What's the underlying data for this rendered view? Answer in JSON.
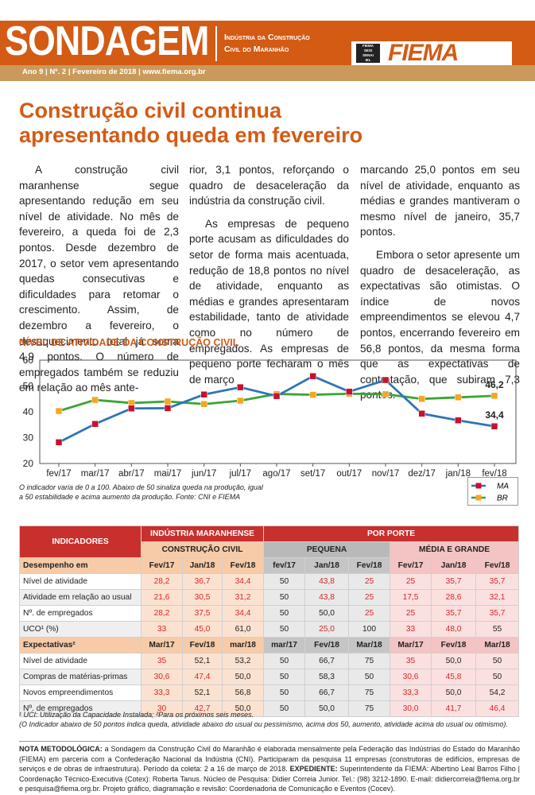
{
  "header": {
    "title": "SONDAGEM",
    "subtitle_line1": "Indústria da Construção",
    "subtitle_line2": "Civil do Maranhão",
    "logo_text": "FIEMA",
    "logo_mini": [
      "FIEMA",
      "SESI",
      "SENAI",
      "IEL"
    ],
    "issue": "Ano 9 | Nº. 2 | Fevereiro de 2018 | www.fiema.org.br"
  },
  "headline": {
    "line1": "Construção civil continua",
    "line2": "apresentando queda em fevereiro"
  },
  "article": {
    "col1_p1": "A construção civil maranhense segue apresentando redução em seu nível de atividade. No mês de fevereiro, a queda foi de 2,3 pontos. Desde dezembro de 2017, o setor vem apresentando quedas consecutivas e dificuldades para retomar o crescimento. Assim, de dezembro a fevereiro, o desaquecimento total já soma 4,9 pontos. O número de empregados também se reduziu em relação ao mês ante-",
    "col2_p1": "rior, 3,1 pontos, reforçando o quadro de desaceleração da indústria da construção civil.",
    "col2_p2": "As empresas de pequeno porte acusam as dificuldades do setor de forma mais acentuada, redução de 18,8 pontos no nível de atividade, enquanto as médias e grandes apresentaram estabilidade, tanto de atividade como no número de empregados. As empresas de pequeno porte fecharam o mês de março",
    "col3_p1": "marcando 25,0 pontos em seu nível de atividade, enquanto as médias e grandes mantiveram o mesmo nível de janeiro, 35,7 pontos.",
    "col3_p2": "Embora o setor apresente um quadro de desaceleração, as expectativas são otimistas. O índice de novos empreendimentos se elevou 4,7 pontos, encerrando fevereiro em 56,8 pontos, da mesma forma que as expectativas de contratação, que subiram 7,3 pontos."
  },
  "chart_data": {
    "type": "line",
    "title": "NÍVEL DE ATIVIDADE DA CONSTRUÇÃO CIVIL",
    "categories": [
      "fev/17",
      "mar/17",
      "abr/17",
      "mai/17",
      "jun/17",
      "jul/17",
      "ago/17",
      "set/17",
      "out/17",
      "nov/17",
      "dez/17",
      "jan/18",
      "fev/18"
    ],
    "series": [
      {
        "name": "MA",
        "color": "#2e75b6",
        "marker_color": "#c8102e",
        "values": [
          28.2,
          35.3,
          41.3,
          41.4,
          46.7,
          49.5,
          46.1,
          53.8,
          47.8,
          52.3,
          39.3,
          36.7,
          34.4
        ]
      },
      {
        "name": "BR",
        "color": "#3aa535",
        "marker_color": "#f5a623",
        "values": [
          40.3,
          44.6,
          43.4,
          44.0,
          43.0,
          44.3,
          46.9,
          46.6,
          47.0,
          46.8,
          45.0,
          45.6,
          46.2
        ]
      }
    ],
    "ylim": [
      20,
      60
    ],
    "yticks": [
      "60",
      "50",
      "40",
      "30",
      "20"
    ],
    "end_labels": {
      "MA": "34,4",
      "BR": "46,2"
    },
    "grid": false,
    "legend": "bottom-right",
    "note_line1": "O indicador varia de 0 a 100. Abaixo de 50 sinaliza queda na produção, igual",
    "note_line2": "a 50 estabilidade e acima aumento da produção. Fonte: CNI e FIEMA"
  },
  "table": {
    "head_indicadores": "INDICADORES",
    "head_ind_ma": "INDÚSTRIA MARANHENSE",
    "head_porte": "POR PORTE",
    "head_cc": "CONSTRUÇÃO CIVIL",
    "head_pequena": "PEQUENA",
    "head_mg": "MÉDIA E GRANDE",
    "sec1_label": "Desempenho em",
    "sec1_cols": [
      "Fev/17",
      "Jan/18",
      "Fev/18",
      "fev/17",
      "Jan/18",
      "Fev/18",
      "Fev/17",
      "Jan/18",
      "Fev/18"
    ],
    "sec1_rows": [
      {
        "label": "Nível de atividade",
        "v": [
          "28,2",
          "36,7",
          "34,4",
          "50",
          "43,8",
          "25",
          "25",
          "35,7",
          "35,7"
        ]
      },
      {
        "label": "Atividade em relação ao usual",
        "v": [
          "21,6",
          "30,5",
          "31,2",
          "50",
          "43,8",
          "25",
          "17,5",
          "28,6",
          "32,1"
        ]
      },
      {
        "label": "Nº. de empregados",
        "v": [
          "28,2",
          "37,5",
          "34,4",
          "50",
          "50,0",
          "25",
          "25",
          "35,7",
          "35,7"
        ]
      },
      {
        "label": "UCO¹ (%)",
        "v": [
          "33",
          "45,0",
          "61,0",
          "50",
          "25,0",
          "100",
          "33",
          "48,0",
          "55"
        ]
      }
    ],
    "sec2_label": "Expectativas²",
    "sec2_cols": [
      "Mar/17",
      "Fev/18",
      "mar/18",
      "mar/17",
      "Fev/18",
      "Mar/18",
      "Mar/17",
      "Fev/18",
      "Mar/18"
    ],
    "sec2_rows": [
      {
        "label": "Nível de atividade",
        "v": [
          "35",
          "52,1",
          "53,2",
          "50",
          "66,7",
          "75",
          "35",
          "50,0",
          "50"
        ]
      },
      {
        "label": "Compras de matérias-primas",
        "v": [
          "30,6",
          "47,4",
          "50,0",
          "50",
          "58,3",
          "50",
          "30,6",
          "45,8",
          "50"
        ]
      },
      {
        "label": "Novos empreendimentos",
        "v": [
          "33,3",
          "52,1",
          "56,8",
          "50",
          "66,7",
          "75",
          "33,3",
          "50,0",
          "54,2"
        ]
      },
      {
        "label": "Nº. de empregados",
        "v": [
          "30",
          "42,7",
          "50,0",
          "50",
          "50,0",
          "75",
          "30,0",
          "41,7",
          "46,4"
        ]
      }
    ],
    "note1": "¹ UCI: Utilização da Capacidade Instalada; ²Para os próximos seis meses.",
    "note2": "(O Indicador abaixo de 50 pontos indica queda, atividade abaixo do usual ou pessimismo, acima dos 50, aumento, atividade acima do usual ou otimismo)."
  },
  "methodology": {
    "label1": "NOTA METODOLÓGICA:",
    "text1": " a Sondagem da Construção Civil do Maranhão é elaborada mensalmente pela Federação das Indústrias do Estado do Maranhão (FIEMA) em parceria com a Confederação Nacional da Indústria (CNI). Participaram da pesquisa 11 empresas (construtoras de edifícios, empresas de serviços e de obras de infraestrutura). Período da coleta: 2 a 16 de março de 2018. ",
    "label2": "EXPEDIENTE:",
    "text2": " Superintendente da FIEMA: Albertino Leal Barros Filho | Coordenação Técnico-Executiva (Cotex): Roberta Tanus. Núcleo de Pesquisa: Didier Correia Junior. Tel.: (98) 3212-1890. E-mail: didiercorreia@fiema.org.br e pesquisa@fiema.org.br. Projeto gráfico, diagramação e revisão: Coordenadoria de Comunicação e Eventos (Cocev)."
  },
  "colors": {
    "accent": "#d35b14",
    "table_red": "#c8302e",
    "value_red": "#d8262b"
  }
}
